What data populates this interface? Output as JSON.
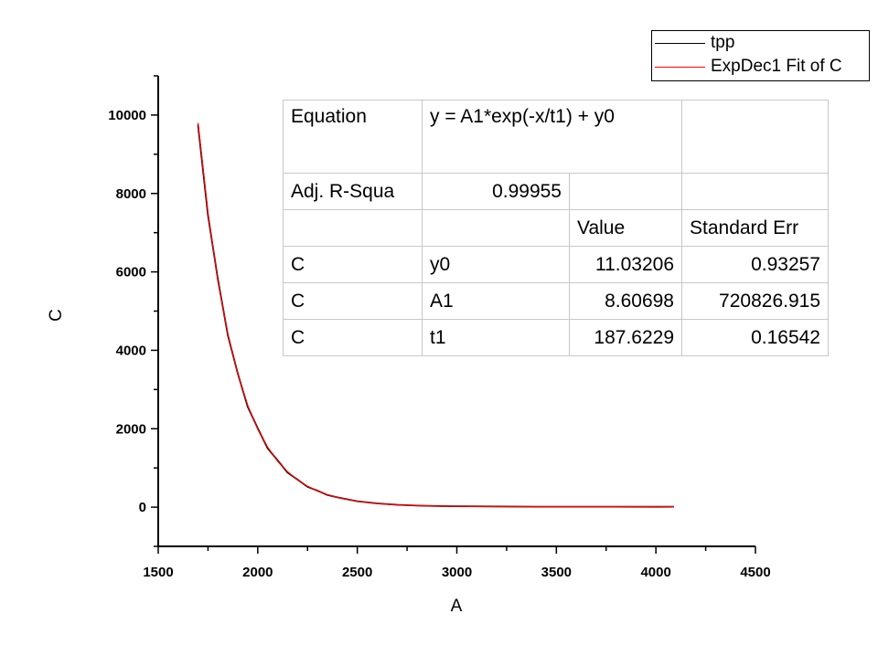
{
  "chart_data": {
    "type": "line",
    "xlabel": "A",
    "ylabel": "C",
    "xlim": [
      1500,
      4500
    ],
    "ylim": [
      -1000,
      11000
    ],
    "x_ticks": [
      1500,
      2000,
      2500,
      3000,
      3500,
      4000,
      4500
    ],
    "y_ticks": [
      0,
      2000,
      4000,
      6000,
      8000,
      10000
    ],
    "grid": false,
    "legend_placement": "top-right",
    "series": [
      {
        "name": "tpp",
        "color": "#000000",
        "x": [
          1700,
          1750,
          1800,
          1850,
          1900,
          1950,
          2000,
          2050,
          2100,
          2150,
          2200,
          2250,
          2300,
          2350,
          2400,
          2500,
          2600,
          2700,
          2800,
          2900,
          3000,
          3200,
          3400,
          3600,
          3800,
          4000,
          4090
        ],
        "y": [
          9750,
          7450,
          5800,
          4380,
          3400,
          2560,
          2010,
          1500,
          1190,
          880,
          700,
          520,
          420,
          310,
          250,
          150,
          95,
          60,
          40,
          28,
          22,
          15,
          12,
          11,
          11,
          10,
          11
        ]
      },
      {
        "name": "ExpDec1 Fit of C",
        "color": "#ff0000",
        "x": [
          1700,
          1750,
          1800,
          1850,
          1900,
          1950,
          2000,
          2050,
          2100,
          2150,
          2200,
          2250,
          2300,
          2350,
          2400,
          2500,
          2600,
          2700,
          2800,
          2900,
          3000,
          3200,
          3400,
          3600,
          3800,
          4000,
          4090
        ],
        "y": [
          9800,
          7510,
          5756,
          4412,
          3383,
          2594,
          1990,
          1527,
          1172,
          901,
          693,
          533,
          411,
          318,
          246,
          149,
          92,
          59,
          39,
          27,
          21,
          14,
          12,
          11,
          11,
          11,
          11
        ]
      }
    ]
  },
  "fit_table": {
    "equation_label": "Equation",
    "equation": "y = A1*exp(-x/t1) + y0",
    "adj_r_label": "Adj. R-Squa",
    "adj_r_value": "0.99955",
    "value_header": "Value",
    "stderr_header": "Standard Err",
    "rows": [
      {
        "dataset": "C",
        "param": "y0",
        "value": "11.03206",
        "stderr": "0.93257"
      },
      {
        "dataset": "C",
        "param": "A1",
        "value": "8.60698",
        "stderr": "720826.915"
      },
      {
        "dataset": "C",
        "param": "t1",
        "value": "187.6229",
        "stderr": "0.16542"
      }
    ]
  }
}
